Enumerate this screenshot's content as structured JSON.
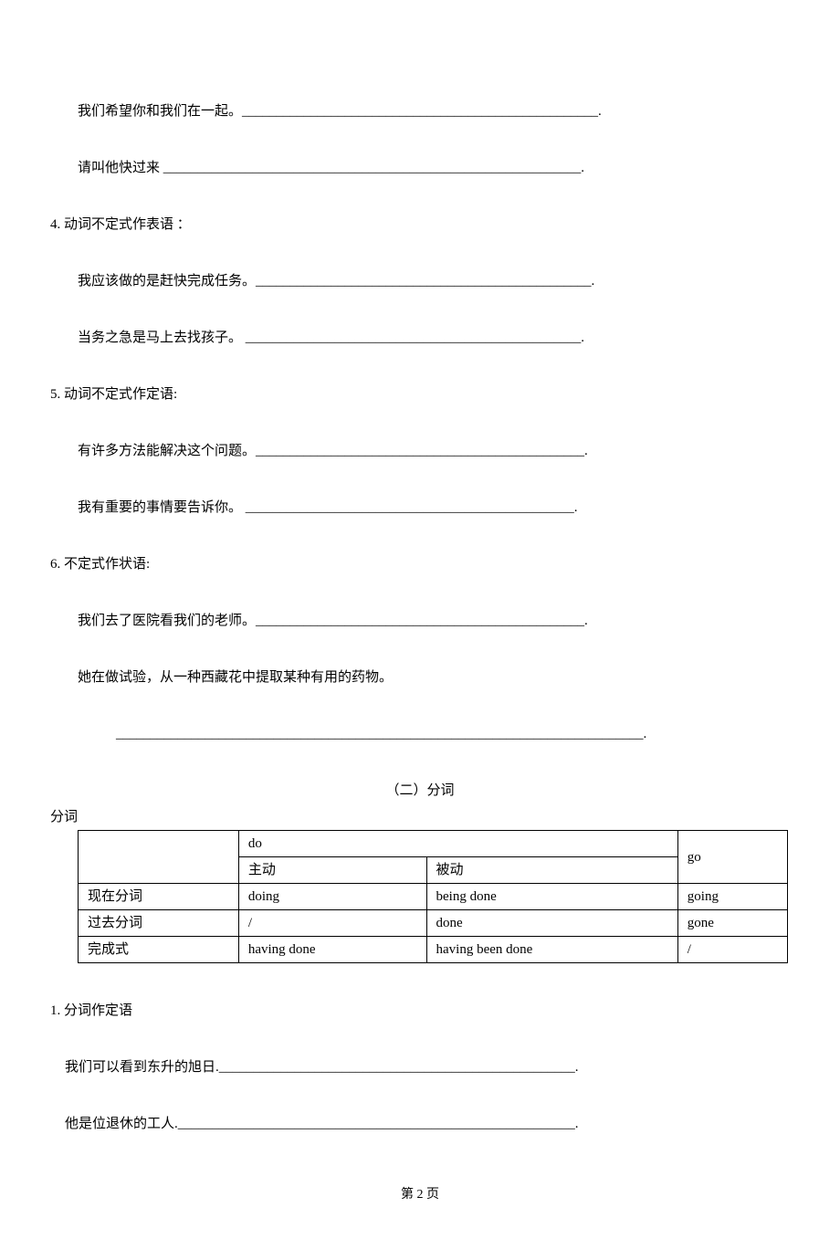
{
  "lines": {
    "l1": "我们希望你和我们在一起。____________________________________________________.",
    "l2": "请叫他快过来    _____________________________________________________________.",
    "s4": "4. 动词不定式作表语 ：",
    "l3": "我应该做的是赶快完成任务。_________________________________________________.",
    "l4": "当务之急是马上去找孩子。   _________________________________________________.",
    "s5": "5. 动词不定式作定语:",
    "l5": "有许多方法能解决这个问题。________________________________________________.",
    "l6": "我有重要的事情要告诉你。   ________________________________________________.",
    "s6": "6. 不定式作状语:",
    "l7": "我们去了医院看我们的老师。________________________________________________.",
    "l8": "她在做试验，从一种西藏花中提取某种有用的药物。",
    "blank": "_____________________________________________________________________________.",
    "title2": "（二）分词",
    "fenci": "分词",
    "s1b": "1. 分词作定语",
    "l9": "我们可以看到东升的旭日.____________________________________________________.",
    "l10": "他是位退休的工人.__________________________________________________________.",
    "page": "第 2 页"
  },
  "table": {
    "r0c1": "do",
    "r0c2": "go",
    "r1c1": "主动",
    "r1c2": "被动",
    "r2c0": "现在分词",
    "r2c1": "doing",
    "r2c2": "being done",
    "r2c3": "going",
    "r3c0": "过去分词",
    "r3c1": "/",
    "r3c2": "done",
    "r3c3": "gone",
    "r4c0": "完成式",
    "r4c1": "having done",
    "r4c2": "having been done",
    "r4c3": "/"
  }
}
